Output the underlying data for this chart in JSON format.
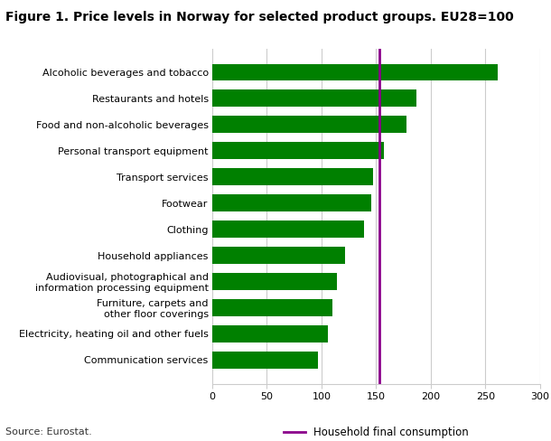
{
  "title": "Figure 1. Price levels in Norway for selected product groups. EU28=100",
  "categories": [
    "Communication services",
    "Electricity, heating oil and other fuels",
    "Furniture, carpets and\nother floor coverings",
    "Audiovisual, photographical and\ninformation processing equipment",
    "Household appliances",
    "Clothing",
    "Footwear",
    "Transport services",
    "Personal transport equipment",
    "Food and non-alcoholic beverages",
    "Restaurants and hotels",
    "Alcoholic beverages and tobacco"
  ],
  "values": [
    97,
    106,
    110,
    114,
    122,
    139,
    146,
    147,
    157,
    178,
    187,
    261
  ],
  "bar_color": "#008000",
  "vline_value": 153,
  "vline_color": "#8B008B",
  "vline_label": "Household final consumption",
  "xlim": [
    0,
    300
  ],
  "xticks": [
    0,
    50,
    100,
    150,
    200,
    250,
    300
  ],
  "source": "Source: Eurostat.",
  "background_color": "#ffffff",
  "grid_color": "#cccccc",
  "title_fontsize": 10,
  "tick_fontsize": 8,
  "bar_height": 0.65
}
